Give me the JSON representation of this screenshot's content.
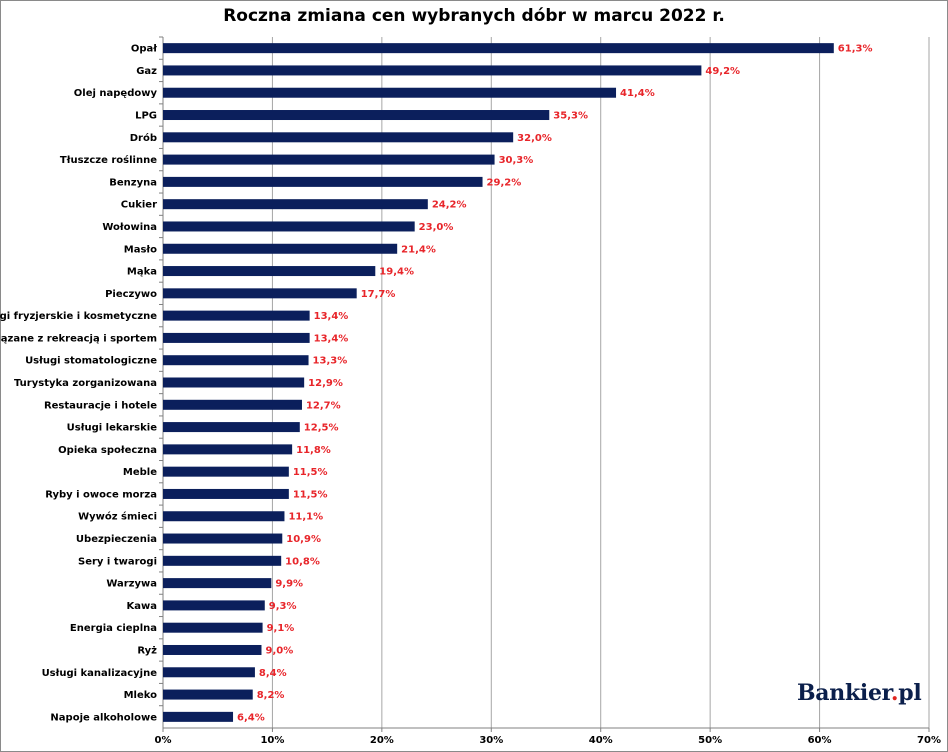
{
  "chart_data": {
    "type": "bar",
    "orientation": "horizontal",
    "title": "Roczna zmiana cen wybranych dóbr w marcu 2022 r.",
    "xlabel": "",
    "ylabel": "",
    "xlim": [
      0,
      70
    ],
    "x_ticks": [
      "0%",
      "10%",
      "20%",
      "30%",
      "40%",
      "50%",
      "60%",
      "70%"
    ],
    "grid": "vertical",
    "bar_color": "#0b1f5c",
    "label_color": "#e8252a",
    "categories": [
      "Opał",
      "Gaz",
      "Olej napędowy",
      "LPG",
      "Drób",
      "Tłuszcze roślinne",
      "Benzyna",
      "Cukier",
      "Wołowina",
      "Masło",
      "Mąka",
      "Pieczywo",
      "Usługi fryzjerskie i kosmetyczne",
      "Usługi związane z rekreacją i sportem",
      "Usługi stomatologiczne",
      "Turystyka zorganizowana",
      "Restauracje i hotele",
      "Usługi lekarskie",
      "Opieka społeczna",
      "Meble",
      "Ryby i owoce morza",
      "Wywóz śmieci",
      "Ubezpieczenia",
      "Sery i twarogi",
      "Warzywa",
      "Kawa",
      "Energia cieplna",
      "Ryż",
      "Usługi kanalizacyjne",
      "Mleko",
      "Napoje alkoholowe"
    ],
    "values": [
      61.3,
      49.2,
      41.4,
      35.3,
      32.0,
      30.3,
      29.2,
      24.2,
      23.0,
      21.4,
      19.4,
      17.7,
      13.4,
      13.4,
      13.3,
      12.9,
      12.7,
      12.5,
      11.8,
      11.5,
      11.5,
      11.1,
      10.9,
      10.8,
      9.9,
      9.3,
      9.1,
      9.0,
      8.4,
      8.2,
      6.4
    ],
    "value_labels": [
      "61,3%",
      "49,2%",
      "41,4%",
      "35,3%",
      "32,0%",
      "30,3%",
      "29,2%",
      "24,2%",
      "23,0%",
      "21,4%",
      "19,4%",
      "17,7%",
      "13,4%",
      "13,4%",
      "13,3%",
      "12,9%",
      "12,7%",
      "12,5%",
      "11,8%",
      "11,5%",
      "11,5%",
      "11,1%",
      "10,9%",
      "10,8%",
      "9,9%",
      "9,3%",
      "9,1%",
      "9,0%",
      "8,4%",
      "8,2%",
      "6,4%"
    ]
  },
  "logo": {
    "text_main": "Bankier",
    "text_dot": ".",
    "text_tld": "pl"
  }
}
